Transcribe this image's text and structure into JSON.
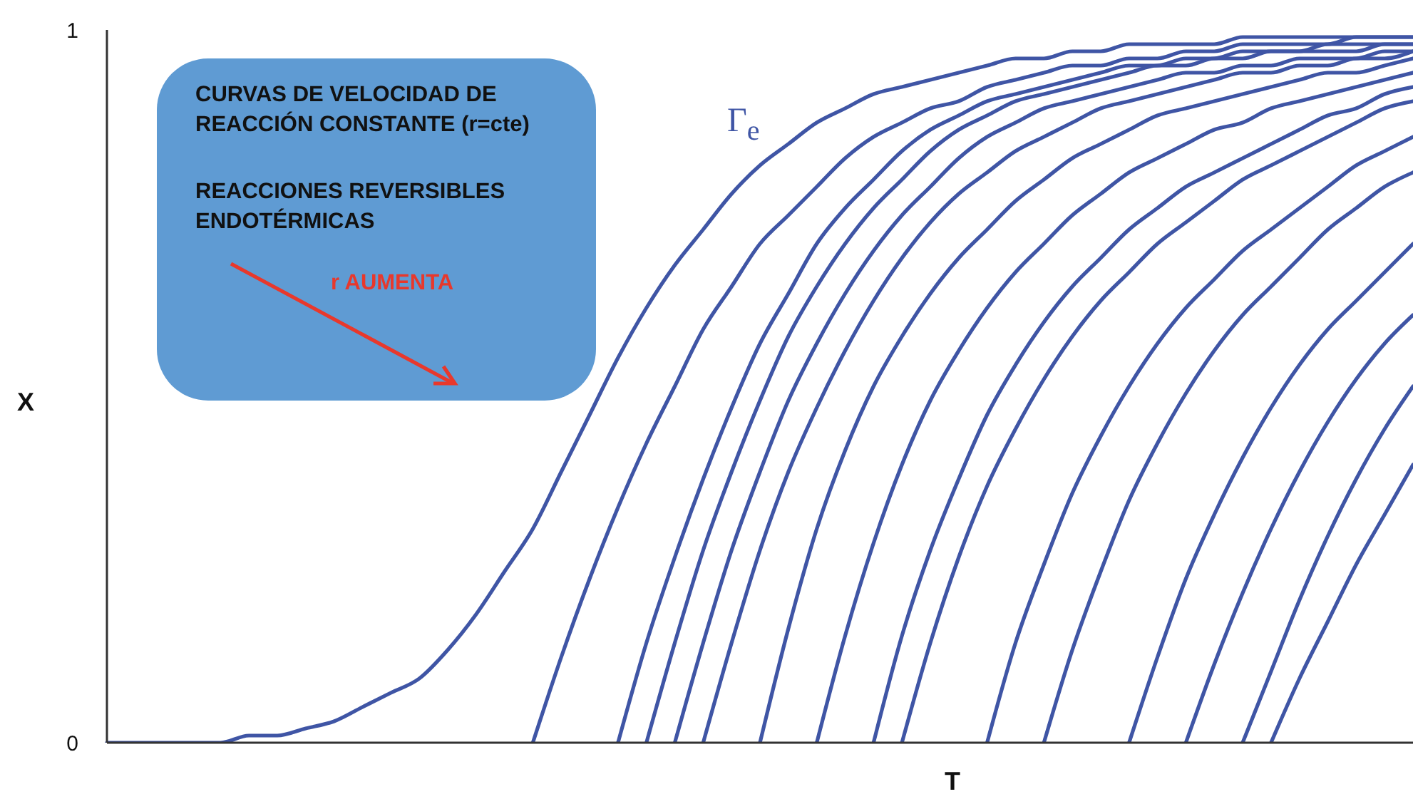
{
  "chart_data": {
    "type": "line",
    "xlabel": "T",
    "ylabel": "X",
    "ylim": [
      0,
      1
    ],
    "yticks": [
      0,
      1
    ],
    "categories": [
      null,
      null,
      null,
      null,
      null,
      null,
      null,
      null,
      null,
      null,
      null,
      null,
      null,
      null,
      null,
      null,
      null,
      null,
      null,
      null,
      null,
      null,
      null,
      null,
      null,
      null,
      null,
      null,
      null,
      null,
      null,
      null,
      null,
      null,
      null,
      null,
      null,
      null,
      null,
      null,
      null,
      null,
      null,
      null,
      null,
      null,
      null
    ],
    "annotations": [
      "CURVAS DE VELOCIDAD DE REACCIÓN CONSTANTE (r=cte)",
      "REACCIONES REVERSIBLES ENDOTÉRMICAS",
      "r AUMENTA",
      "Γ$_{e}$"
    ],
    "series": [
      {
        "color": "#3f55a5",
        "values": [
          0,
          0,
          0,
          0,
          0,
          0.01,
          0.01,
          0.02,
          0.03,
          0.05,
          0.07,
          0.09,
          0.13,
          0.18,
          0.24,
          0.3,
          0.38,
          0.46,
          0.54,
          0.61,
          0.67,
          0.72,
          0.77,
          0.81,
          0.84,
          0.87,
          0.89,
          0.91,
          0.92,
          0.93,
          0.94,
          0.95,
          0.96,
          0.96,
          0.97,
          0.97,
          0.98,
          0.98,
          0.98,
          0.98,
          0.99,
          0.99,
          0.99,
          0.99,
          0.99,
          0.99,
          0.99
        ]
      },
      {
        "color": "#3f55a5",
        "values": [
          null,
          null,
          null,
          null,
          null,
          null,
          null,
          null,
          null,
          null,
          null,
          null,
          null,
          null,
          null,
          0,
          0.12,
          0.23,
          0.33,
          0.42,
          0.5,
          0.58,
          0.64,
          0.7,
          0.74,
          0.78,
          0.82,
          0.85,
          0.87,
          0.89,
          0.9,
          0.92,
          0.93,
          0.94,
          0.95,
          0.95,
          0.96,
          0.96,
          0.97,
          0.97,
          0.98,
          0.98,
          0.98,
          0.98,
          0.99,
          0.99,
          0.99
        ]
      },
      {
        "color": "#3f55a5",
        "values": [
          null,
          null,
          null,
          null,
          null,
          null,
          null,
          null,
          null,
          null,
          null,
          null,
          null,
          null,
          null,
          null,
          null,
          null,
          0,
          0.14,
          0.26,
          0.37,
          0.47,
          0.56,
          0.63,
          0.7,
          0.75,
          0.79,
          0.83,
          0.86,
          0.88,
          0.9,
          0.91,
          0.92,
          0.93,
          0.94,
          0.95,
          0.95,
          0.96,
          0.96,
          0.97,
          0.97,
          0.97,
          0.98,
          0.98,
          0.98,
          0.98
        ]
      },
      {
        "color": "#3f55a5",
        "values": [
          null,
          null,
          null,
          null,
          null,
          null,
          null,
          null,
          null,
          null,
          null,
          null,
          null,
          null,
          null,
          null,
          null,
          null,
          null,
          0,
          0.14,
          0.27,
          0.38,
          0.48,
          0.57,
          0.64,
          0.7,
          0.75,
          0.79,
          0.83,
          0.86,
          0.88,
          0.9,
          0.91,
          0.92,
          0.93,
          0.94,
          0.95,
          0.95,
          0.96,
          0.96,
          0.97,
          0.97,
          0.97,
          0.97,
          0.98,
          0.98
        ]
      },
      {
        "color": "#3f55a5",
        "values": [
          null,
          null,
          null,
          null,
          null,
          null,
          null,
          null,
          null,
          null,
          null,
          null,
          null,
          null,
          null,
          null,
          null,
          null,
          null,
          null,
          0,
          0.14,
          0.27,
          0.38,
          0.48,
          0.56,
          0.63,
          0.69,
          0.74,
          0.78,
          0.82,
          0.85,
          0.87,
          0.89,
          0.9,
          0.91,
          0.92,
          0.93,
          0.94,
          0.94,
          0.95,
          0.95,
          0.96,
          0.96,
          0.96,
          0.97,
          0.97
        ]
      },
      {
        "color": "#3f55a5",
        "values": [
          null,
          null,
          null,
          null,
          null,
          null,
          null,
          null,
          null,
          null,
          null,
          null,
          null,
          null,
          null,
          null,
          null,
          null,
          null,
          null,
          null,
          0,
          0.14,
          0.27,
          0.38,
          0.47,
          0.55,
          0.62,
          0.68,
          0.73,
          0.77,
          0.8,
          0.83,
          0.85,
          0.87,
          0.89,
          0.9,
          0.91,
          0.92,
          0.93,
          0.94,
          0.94,
          0.95,
          0.95,
          0.96,
          0.96,
          0.97
        ]
      },
      {
        "color": "#3f55a5",
        "values": [
          null,
          null,
          null,
          null,
          null,
          null,
          null,
          null,
          null,
          null,
          null,
          null,
          null,
          null,
          null,
          null,
          null,
          null,
          null,
          null,
          null,
          null,
          null,
          0,
          0.16,
          0.3,
          0.41,
          0.5,
          0.57,
          0.63,
          0.68,
          0.72,
          0.76,
          0.79,
          0.82,
          0.84,
          0.86,
          0.88,
          0.89,
          0.9,
          0.91,
          0.92,
          0.93,
          0.94,
          0.94,
          0.95,
          0.96
        ]
      },
      {
        "color": "#3f55a5",
        "values": [
          null,
          null,
          null,
          null,
          null,
          null,
          null,
          null,
          null,
          null,
          null,
          null,
          null,
          null,
          null,
          null,
          null,
          null,
          null,
          null,
          null,
          null,
          null,
          null,
          null,
          0,
          0.15,
          0.28,
          0.39,
          0.48,
          0.55,
          0.61,
          0.66,
          0.7,
          0.74,
          0.77,
          0.8,
          0.82,
          0.84,
          0.86,
          0.87,
          0.89,
          0.9,
          0.91,
          0.92,
          0.93,
          0.94
        ]
      },
      {
        "color": "#3f55a5",
        "values": [
          null,
          null,
          null,
          null,
          null,
          null,
          null,
          null,
          null,
          null,
          null,
          null,
          null,
          null,
          null,
          null,
          null,
          null,
          null,
          null,
          null,
          null,
          null,
          null,
          null,
          null,
          null,
          0,
          0.15,
          0.27,
          0.37,
          0.46,
          0.53,
          0.59,
          0.64,
          0.68,
          0.72,
          0.75,
          0.78,
          0.8,
          0.82,
          0.84,
          0.86,
          0.88,
          0.89,
          0.91,
          0.92
        ]
      },
      {
        "color": "#3f55a5",
        "values": [
          null,
          null,
          null,
          null,
          null,
          null,
          null,
          null,
          null,
          null,
          null,
          null,
          null,
          null,
          null,
          null,
          null,
          null,
          null,
          null,
          null,
          null,
          null,
          null,
          null,
          null,
          null,
          null,
          0,
          0.14,
          0.26,
          0.36,
          0.44,
          0.51,
          0.57,
          0.62,
          0.66,
          0.7,
          0.73,
          0.76,
          0.79,
          0.81,
          0.83,
          0.85,
          0.87,
          0.89,
          0.9
        ]
      },
      {
        "color": "#3f55a5",
        "values": [
          null,
          null,
          null,
          null,
          null,
          null,
          null,
          null,
          null,
          null,
          null,
          null,
          null,
          null,
          null,
          null,
          null,
          null,
          null,
          null,
          null,
          null,
          null,
          null,
          null,
          null,
          null,
          null,
          null,
          null,
          null,
          0,
          0.14,
          0.25,
          0.35,
          0.43,
          0.5,
          0.56,
          0.61,
          0.65,
          0.69,
          0.72,
          0.75,
          0.78,
          0.81,
          0.83,
          0.85
        ]
      },
      {
        "color": "#3f55a5",
        "values": [
          null,
          null,
          null,
          null,
          null,
          null,
          null,
          null,
          null,
          null,
          null,
          null,
          null,
          null,
          null,
          null,
          null,
          null,
          null,
          null,
          null,
          null,
          null,
          null,
          null,
          null,
          null,
          null,
          null,
          null,
          null,
          null,
          null,
          0,
          0.13,
          0.24,
          0.34,
          0.42,
          0.49,
          0.55,
          0.6,
          0.64,
          0.68,
          0.72,
          0.75,
          0.78,
          0.8
        ]
      },
      {
        "color": "#3f55a5",
        "values": [
          null,
          null,
          null,
          null,
          null,
          null,
          null,
          null,
          null,
          null,
          null,
          null,
          null,
          null,
          null,
          null,
          null,
          null,
          null,
          null,
          null,
          null,
          null,
          null,
          null,
          null,
          null,
          null,
          null,
          null,
          null,
          null,
          null,
          null,
          null,
          null,
          0,
          0.12,
          0.23,
          0.32,
          0.4,
          0.47,
          0.53,
          0.58,
          0.62,
          0.66,
          0.7
        ]
      },
      {
        "color": "#3f55a5",
        "values": [
          null,
          null,
          null,
          null,
          null,
          null,
          null,
          null,
          null,
          null,
          null,
          null,
          null,
          null,
          null,
          null,
          null,
          null,
          null,
          null,
          null,
          null,
          null,
          null,
          null,
          null,
          null,
          null,
          null,
          null,
          null,
          null,
          null,
          null,
          null,
          null,
          null,
          null,
          0,
          0.11,
          0.21,
          0.3,
          0.38,
          0.45,
          0.51,
          0.56,
          0.6
        ]
      },
      {
        "color": "#3f55a5",
        "values": [
          null,
          null,
          null,
          null,
          null,
          null,
          null,
          null,
          null,
          null,
          null,
          null,
          null,
          null,
          null,
          null,
          null,
          null,
          null,
          null,
          null,
          null,
          null,
          null,
          null,
          null,
          null,
          null,
          null,
          null,
          null,
          null,
          null,
          null,
          null,
          null,
          null,
          null,
          null,
          null,
          0,
          0.1,
          0.2,
          0.29,
          0.37,
          0.44,
          0.5
        ]
      },
      {
        "color": "#3f55a5",
        "values": [
          null,
          null,
          null,
          null,
          null,
          null,
          null,
          null,
          null,
          null,
          null,
          null,
          null,
          null,
          null,
          null,
          null,
          null,
          null,
          null,
          null,
          null,
          null,
          null,
          null,
          null,
          null,
          null,
          null,
          null,
          null,
          null,
          null,
          null,
          null,
          null,
          null,
          null,
          null,
          null,
          null,
          0,
          0.09,
          0.17,
          0.25,
          0.32,
          0.39
        ]
      }
    ]
  }
}
